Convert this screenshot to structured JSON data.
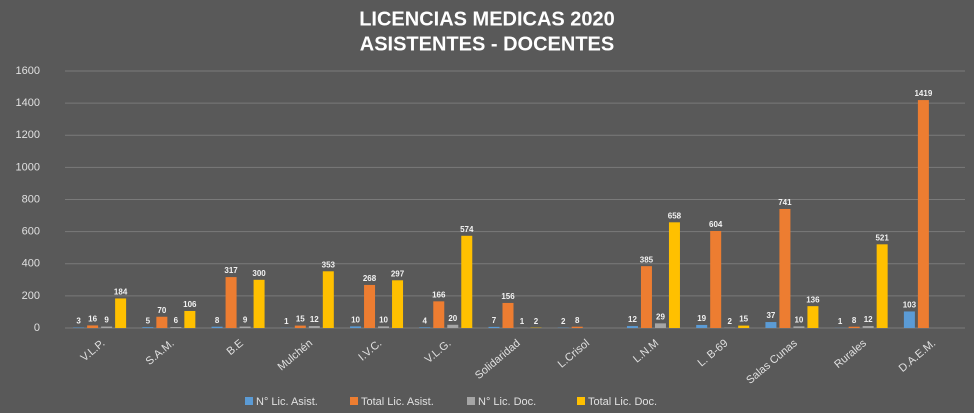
{
  "chart_data": {
    "type": "bar",
    "title": "LICENCIAS MEDICAS 2020",
    "subtitle": "ASISTENTES - DOCENTES",
    "categories": [
      "V.L.P.",
      "S.A.M.",
      "B.E",
      "Mulchén",
      "I.V.C.",
      "V.L.G.",
      "Solidaridad",
      "L.Crisol",
      "L.N.M",
      "L. B-69",
      "Salas Cunas",
      "Rurales",
      "D.A.E.M."
    ],
    "series": [
      {
        "name": "N° Lic. Asist.",
        "color": "#5b9bd5",
        "values": [
          3,
          5,
          8,
          1,
          10,
          4,
          7,
          2,
          12,
          19,
          37,
          1,
          103
        ]
      },
      {
        "name": "Total Lic. Asist.",
        "color": "#ed7d31",
        "values": [
          16,
          70,
          317,
          15,
          268,
          166,
          156,
          8,
          385,
          604,
          741,
          8,
          1419
        ]
      },
      {
        "name": "N° Lic. Doc.",
        "color": "#a5a5a5",
        "values": [
          9,
          6,
          9,
          12,
          10,
          20,
          1,
          null,
          29,
          2,
          10,
          12,
          null
        ]
      },
      {
        "name": "Total Lic. Doc.",
        "color": "#ffc000",
        "values": [
          184,
          106,
          300,
          353,
          297,
          574,
          2,
          null,
          658,
          15,
          136,
          521,
          null
        ]
      }
    ],
    "ylim": [
      0,
      1600
    ],
    "yticks": [
      0,
      200,
      400,
      600,
      800,
      1000,
      1200,
      1400,
      1600
    ],
    "grid": true
  }
}
